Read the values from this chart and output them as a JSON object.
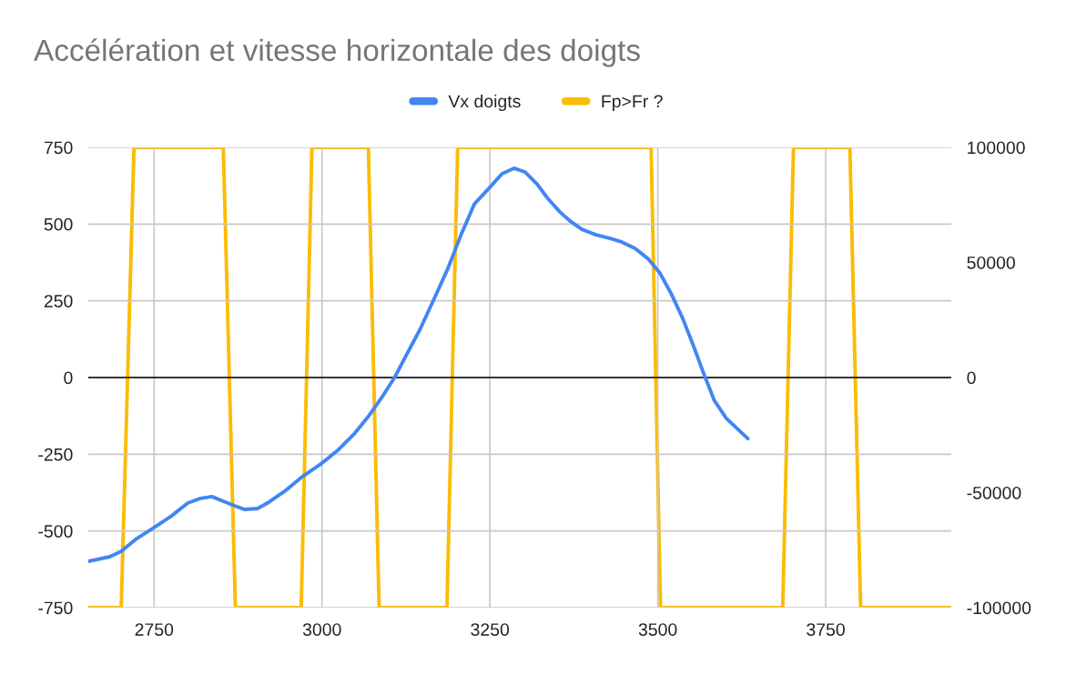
{
  "chart_data": {
    "type": "line",
    "title": "Accélération et vitesse horizontale des doigts",
    "legend": "top",
    "grid": true,
    "marker": "none",
    "line_style": "solid",
    "xlim": [
      2652,
      3937
    ],
    "xticks": [
      2750,
      3000,
      3250,
      3500,
      3750
    ],
    "ylim": [
      -750,
      750
    ],
    "yticks": [
      -750,
      -500,
      -250,
      0,
      250,
      500,
      750
    ],
    "y2lim": [
      -100000,
      100000
    ],
    "y2ticks": [
      -100000,
      -50000,
      0,
      50000,
      100000
    ],
    "ref_lines": [
      {
        "axis": "y",
        "value": 0,
        "color": "#000000"
      }
    ],
    "series": [
      {
        "name": "Vx doigts",
        "color": "#4285f4",
        "x": [
          2652,
          2684,
          2701,
          2724,
          2750,
          2776,
          2800,
          2819,
          2836,
          2853,
          2870,
          2885,
          2904,
          2921,
          2944,
          2969,
          3000,
          3025,
          3049,
          3069,
          3089,
          3108,
          3125,
          3146,
          3166,
          3187,
          3207,
          3227,
          3250,
          3268,
          3286,
          3302,
          3320,
          3336,
          3354,
          3371,
          3387,
          3408,
          3428,
          3446,
          3466,
          3485,
          3503,
          3520,
          3537,
          3553,
          3568,
          3584,
          3602,
          3634
        ],
        "values": [
          -599,
          -584,
          -566,
          -525,
          -489,
          -451,
          -409,
          -394,
          -388,
          -403,
          -418,
          -430,
          -427,
          -406,
          -371,
          -326,
          -279,
          -234,
          -181,
          -127,
          -65,
          0,
          71,
          157,
          252,
          353,
          465,
          566,
          620,
          664,
          682,
          670,
          631,
          584,
          540,
          507,
          483,
          465,
          454,
          442,
          421,
          388,
          341,
          273,
          193,
          104,
          15,
          -74,
          -133,
          -199
        ]
      },
      {
        "name": "Fp>Fr ?",
        "color": "#fbbc04",
        "axis": "y2",
        "x": [
          2652,
          2701,
          2720,
          2853,
          2871,
          2969,
          2985,
          3069,
          3085,
          3186,
          3202,
          3490,
          3504,
          3686,
          3702,
          3786,
          3802,
          3937
        ],
        "values": [
          -100000,
          -100000,
          100000,
          100000,
          -100000,
          -100000,
          100000,
          100000,
          -100000,
          -100000,
          100000,
          100000,
          -100000,
          -100000,
          100000,
          100000,
          -100000,
          -100000
        ]
      }
    ]
  }
}
